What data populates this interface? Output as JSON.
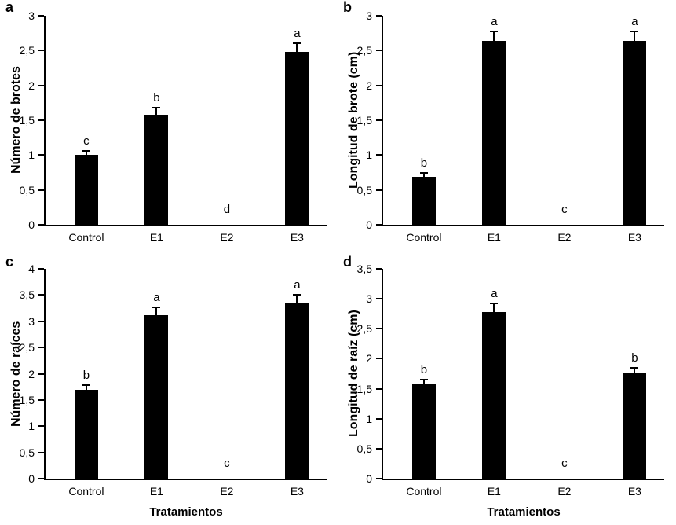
{
  "figure": {
    "background_color": "#ffffff",
    "bar_color": "#000000",
    "axis_color": "#000000",
    "grid": "off",
    "legend": "none",
    "panel_letters": [
      "a",
      "b",
      "c",
      "d"
    ]
  },
  "chart_data": [
    {
      "type": "bar",
      "panel_letter": "a",
      "title": "",
      "ylabel": "Número de brotes",
      "xlabel": "",
      "categories": [
        "Control",
        "E1",
        "E2",
        "E3"
      ],
      "values": [
        1.0,
        1.58,
        0,
        2.48
      ],
      "error_bars": [
        0.06,
        0.1,
        0,
        0.13
      ],
      "sig_letters": [
        "c",
        "b",
        "d",
        "a"
      ],
      "ylim": [
        0,
        3
      ],
      "ytick_step": 0.5,
      "ytick_labels": [
        "0",
        "0,5",
        "1",
        "1,5",
        "2",
        "2,5",
        "3"
      ]
    },
    {
      "type": "bar",
      "panel_letter": "b",
      "title": "",
      "ylabel": "Longitud de brote (cm)",
      "xlabel": "",
      "categories": [
        "Control",
        "E1",
        "E2",
        "E3"
      ],
      "values": [
        0.69,
        2.64,
        0,
        2.64
      ],
      "error_bars": [
        0.05,
        0.14,
        0,
        0.14
      ],
      "sig_letters": [
        "b",
        "a",
        "c",
        "a"
      ],
      "ylim": [
        0,
        3
      ],
      "ytick_step": 0.5,
      "ytick_labels": [
        "0",
        "0,5",
        "1",
        "1,5",
        "2",
        "2,5",
        "3"
      ]
    },
    {
      "type": "bar",
      "panel_letter": "c",
      "title": "",
      "ylabel": "Número de raíces",
      "xlabel": "Tratamientos",
      "categories": [
        "Control",
        "E1",
        "E2",
        "E3"
      ],
      "values": [
        1.7,
        3.11,
        0,
        3.35
      ],
      "error_bars": [
        0.09,
        0.16,
        0,
        0.16
      ],
      "sig_letters": [
        "b",
        "a",
        "c",
        "a"
      ],
      "ylim": [
        0,
        4
      ],
      "ytick_step": 0.5,
      "ytick_labels": [
        "0",
        "0,5",
        "1",
        "1,5",
        "2",
        "2,5",
        "3",
        "3,5",
        "4"
      ]
    },
    {
      "type": "bar",
      "panel_letter": "d",
      "title": "",
      "ylabel": "Longitud de raíz (cm)",
      "xlabel": "Tratamientos",
      "categories": [
        "Control",
        "E1",
        "E2",
        "E3"
      ],
      "values": [
        1.57,
        2.78,
        0,
        1.76
      ],
      "error_bars": [
        0.08,
        0.14,
        0,
        0.09
      ],
      "sig_letters": [
        "b",
        "a",
        "c",
        "b"
      ],
      "ylim": [
        0,
        3.5
      ],
      "ytick_step": 0.5,
      "ytick_labels": [
        "0",
        "0,5",
        "1",
        "1,5",
        "2",
        "2,5",
        "3",
        "3,5"
      ]
    }
  ]
}
